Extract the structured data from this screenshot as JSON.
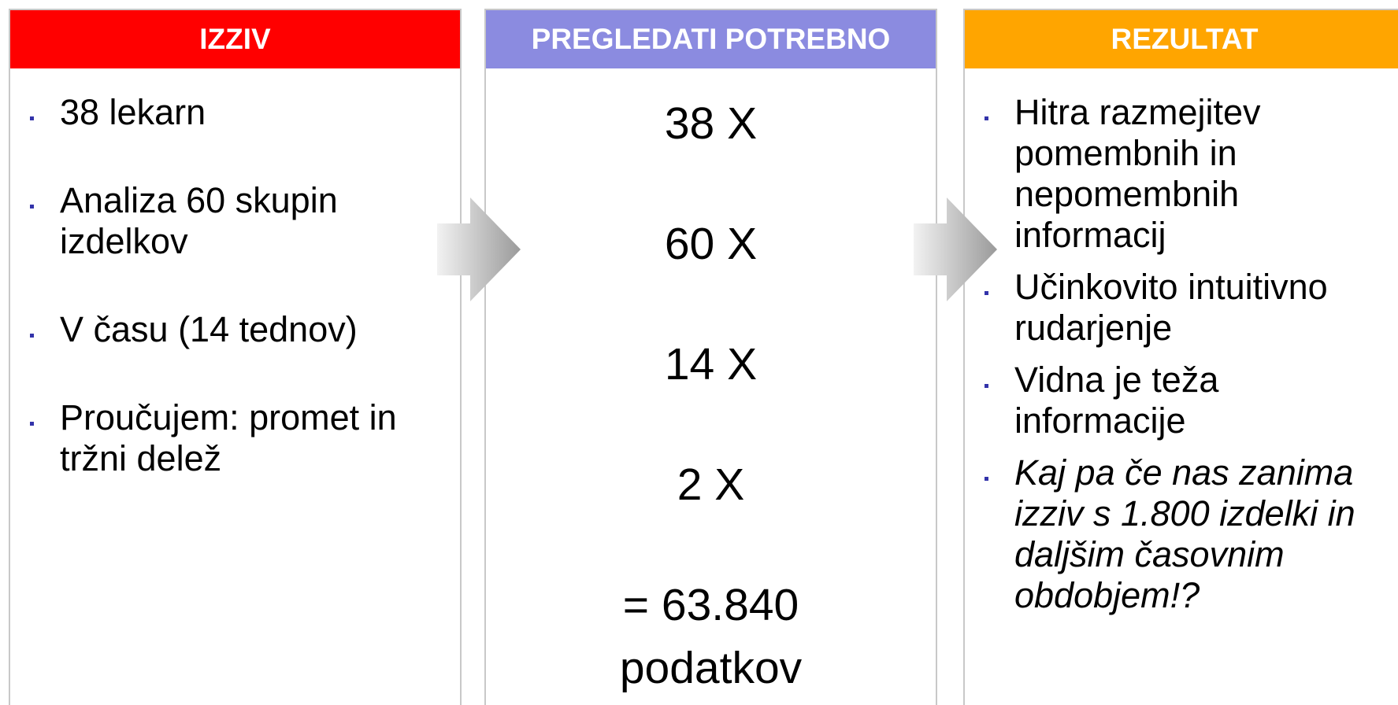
{
  "columns": [
    {
      "header": "IZZIV",
      "items": [
        "38 lekarn",
        "Analiza 60 skupin izdelkov",
        "V času (14 tednov)",
        "Proučujem: promet in tržni delež"
      ]
    },
    {
      "header": "PREGLEDATI POTREBNO",
      "items": [
        "38 X",
        "60 X",
        "14 X",
        "2 X",
        "= 63.840 podatkov"
      ]
    },
    {
      "header": "REZULTAT",
      "items": [
        "Hitra razmejitev pomembnih in nepomembnih informacij",
        "Učinkovito intuitivno rudarjenje",
        "Vidna je teža informacije",
        "Kaj pa če nas zanima izziv s 1.800 izdelki in daljšim časovnim obdobjem!?"
      ]
    }
  ]
}
